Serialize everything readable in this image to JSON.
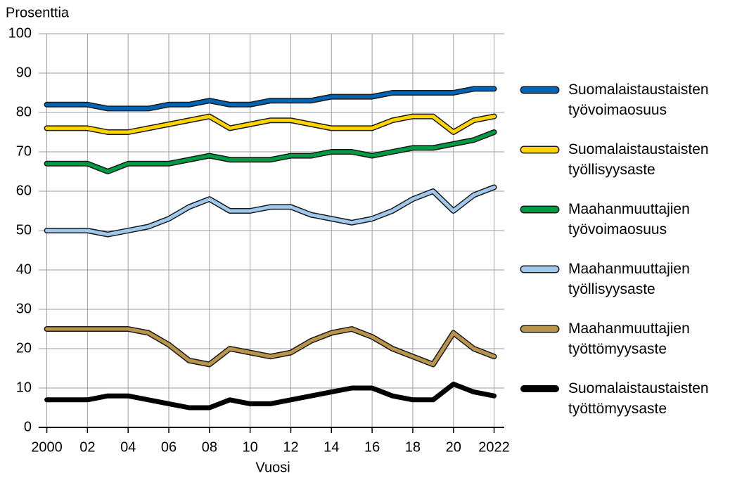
{
  "chart_data": {
    "type": "line",
    "y_label": "Prosenttia",
    "x_label": "Vuosi",
    "x": [
      2000,
      2001,
      2002,
      2003,
      2004,
      2005,
      2006,
      2007,
      2008,
      2009,
      2010,
      2011,
      2012,
      2013,
      2014,
      2015,
      2016,
      2017,
      2018,
      2019,
      2020,
      2021,
      2022
    ],
    "xlim": [
      1999.6,
      2022.5
    ],
    "xticks": [
      2000,
      {
        "value": 2002,
        "label": "02"
      },
      {
        "value": 2004,
        "label": "04"
      },
      {
        "value": 2006,
        "label": "06"
      },
      {
        "value": 2008,
        "label": "08"
      },
      {
        "value": 2010,
        "label": "10"
      },
      {
        "value": 2012,
        "label": "12"
      },
      {
        "value": 2014,
        "label": "14"
      },
      {
        "value": 2016,
        "label": "16"
      },
      {
        "value": 2018,
        "label": "18"
      },
      {
        "value": 2020,
        "label": "20"
      },
      2022
    ],
    "ylim": [
      0,
      100
    ],
    "yticks": [
      0,
      10,
      20,
      30,
      40,
      50,
      60,
      70,
      80,
      90,
      100
    ],
    "grid": true,
    "legend": "right",
    "series": [
      {
        "name": "Suomalaistaustaisten työvoimaosuus",
        "color": "#0064b4",
        "outlined": true,
        "values": [
          82,
          82,
          82,
          81,
          81,
          81,
          82,
          82,
          83,
          82,
          82,
          83,
          83,
          83,
          84,
          84,
          84,
          85,
          85,
          85,
          85,
          86,
          86
        ]
      },
      {
        "name": "Suomalaistaustaisten työllisyysaste",
        "color": "#ffd400",
        "outlined": true,
        "values": [
          76,
          76,
          76,
          75,
          75,
          76,
          77,
          78,
          79,
          76,
          77,
          78,
          78,
          77,
          76,
          76,
          76,
          78,
          79,
          79,
          75,
          78,
          79
        ]
      },
      {
        "name": "Maahanmuuttajien työvoimaosuus",
        "color": "#009a44",
        "outlined": true,
        "values": [
          67,
          67,
          67,
          65,
          67,
          67,
          67,
          68,
          69,
          68,
          68,
          68,
          69,
          69,
          70,
          70,
          69,
          70,
          71,
          71,
          72,
          73,
          75
        ]
      },
      {
        "name": "Maahanmuuttajien työllisyysaste",
        "color": "#9fc8ec",
        "outlined": true,
        "values": [
          50,
          50,
          50,
          49,
          50,
          51,
          53,
          56,
          58,
          55,
          55,
          56,
          56,
          54,
          53,
          52,
          53,
          55,
          58,
          60,
          55,
          59,
          61
        ]
      },
      {
        "name": "Maahanmuuttajien työttömyysaste",
        "color": "#b8954a",
        "outlined": true,
        "values": [
          25,
          25,
          25,
          25,
          25,
          24,
          21,
          17,
          16,
          20,
          19,
          18,
          19,
          22,
          24,
          25,
          23,
          20,
          18,
          16,
          24,
          20,
          18
        ]
      },
      {
        "name": "Suomalaistaustaisten työttömyysaste",
        "color": "#000000",
        "outlined": false,
        "values": [
          7,
          7,
          7,
          8,
          8,
          7,
          6,
          5,
          5,
          7,
          6,
          6,
          7,
          8,
          9,
          10,
          10,
          8,
          7,
          7,
          11,
          9,
          8
        ]
      }
    ]
  }
}
